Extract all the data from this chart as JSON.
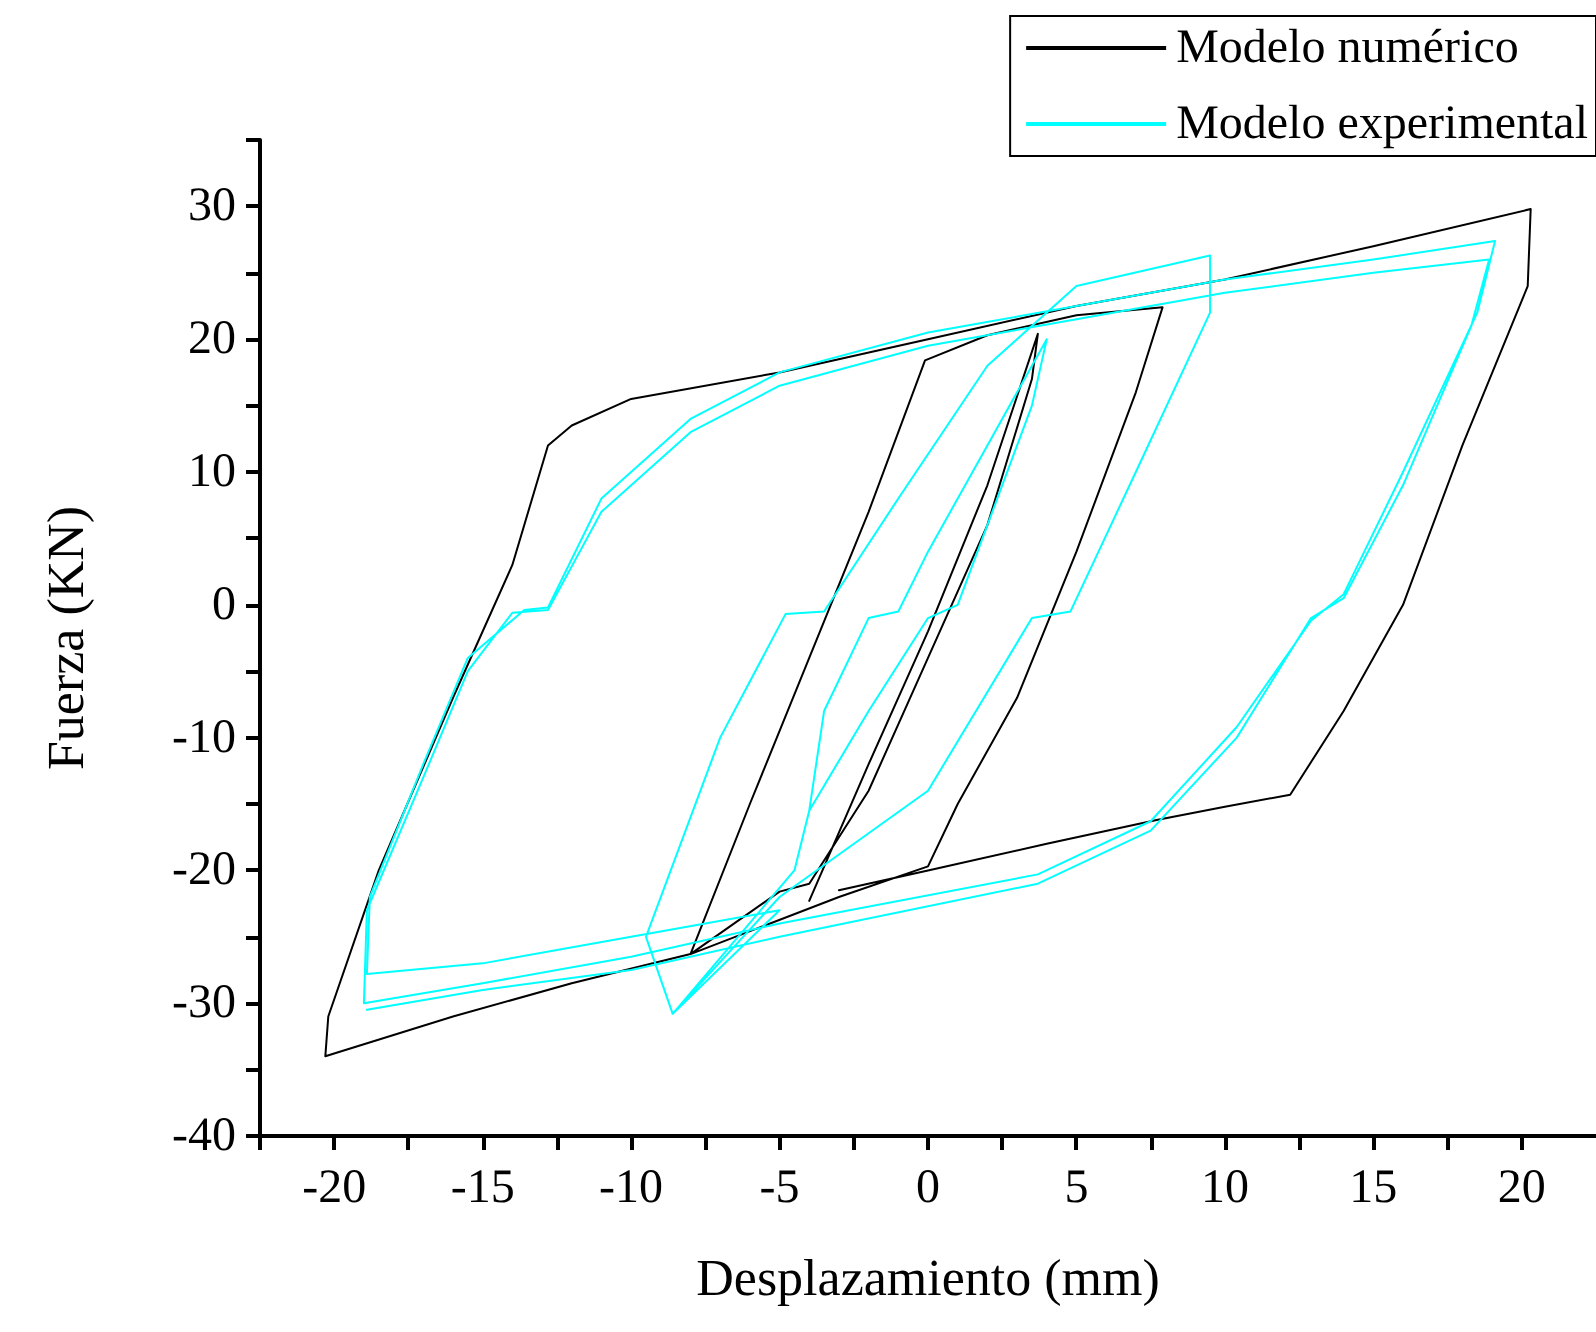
{
  "chart_data": {
    "type": "line",
    "xlabel": "Desplazamiento (mm)",
    "ylabel": "Fuerza (KN)",
    "xlim": [
      -22.5,
      22.5
    ],
    "ylim": [
      -40,
      35
    ],
    "xticks": [
      {
        "value": -22.5,
        "label": null
      },
      -20,
      {
        "value": -17.5,
        "label": null
      },
      -15,
      {
        "value": -12.5,
        "label": null
      },
      -10,
      {
        "value": -7.5,
        "label": null
      },
      -5,
      {
        "value": -2.5,
        "label": null
      },
      0,
      {
        "value": 2.5,
        "label": null
      },
      5,
      {
        "value": 7.5,
        "label": null
      },
      10,
      {
        "value": 12.5,
        "label": null
      },
      15,
      {
        "value": 17.5,
        "label": null
      },
      20
    ],
    "yticks": [
      -40,
      {
        "value": -35,
        "label": null
      },
      -30,
      {
        "value": -25,
        "label": null
      },
      -20,
      {
        "value": -15,
        "label": null
      },
      -10,
      {
        "value": -5,
        "label": null
      },
      0,
      {
        "value": 5,
        "label": null
      },
      10,
      {
        "value": 15,
        "label": null
      },
      20,
      {
        "value": 25,
        "label": null
      },
      30,
      {
        "value": 35,
        "label": null
      }
    ],
    "grid": false,
    "legend": "top right",
    "series": [
      {
        "name": "Modelo numérico",
        "color": "#000000",
        "x": [
          -4,
          -2,
          0,
          2,
          3.7,
          3.5,
          2,
          0,
          -2,
          -4,
          -5,
          -8,
          -6,
          -4,
          -2,
          -0.1,
          2,
          5,
          7.9,
          7,
          5,
          3,
          1,
          0,
          -3,
          -8,
          -12,
          -16,
          -20.3,
          -20.2,
          -18.5,
          -16,
          -14,
          -12.8,
          -12,
          -10,
          -5,
          0,
          5,
          10,
          15,
          20.3,
          20.2,
          18,
          16,
          14,
          12.2,
          10,
          7.7,
          4,
          0,
          -3
        ],
        "values": [
          -22.3,
          -12,
          -2,
          9,
          20.4,
          17,
          6,
          -4,
          -14,
          -21,
          -21.6,
          -26.3,
          -15,
          -4,
          7,
          18.4,
          20.3,
          21.8,
          22.4,
          16,
          4,
          -7,
          -15,
          -19.7,
          -22,
          -26.3,
          -28.5,
          -31,
          -34,
          -31,
          -20,
          -7,
          3,
          12,
          13.5,
          15.5,
          17.5,
          20,
          22.5,
          24.5,
          27,
          29.8,
          24,
          12,
          0,
          -8,
          -14.3,
          -15.2,
          -16.2,
          -18,
          -20,
          -21.5
        ]
      },
      {
        "name": "Modelo experimental",
        "color": "#00ffff",
        "x": [
          -4,
          -3.5,
          -2,
          -1,
          0,
          2,
          4,
          3.5,
          2,
          1,
          0,
          -2,
          -4,
          -4.5,
          -8.6,
          -9.5,
          -7,
          -4.8,
          -3.5,
          -1,
          2,
          5,
          9.5,
          9.5,
          7,
          4.8,
          3.5,
          0,
          -5,
          -8.6,
          -5,
          -10,
          -15,
          -18.9,
          -18.8,
          -17,
          -15.5,
          -13.6,
          -12.8,
          -11,
          -8,
          -5,
          0,
          5,
          10,
          15,
          19.1,
          18.5,
          16,
          14,
          12.9,
          10.4,
          7.5,
          3.7,
          -5,
          -10,
          -15,
          -19,
          -18.9,
          -17,
          -15.5,
          -14,
          -12.8,
          -11,
          -8,
          -5,
          0,
          5,
          10,
          15,
          18.9,
          18.3,
          16,
          14,
          12.9,
          10.4,
          7.5,
          3.7,
          -5,
          -10,
          -15,
          -18.9
        ],
        "values": [
          -15.5,
          -8,
          -1,
          -0.5,
          4,
          12,
          20,
          15,
          6,
          0,
          -1,
          -8,
          -15.5,
          -20,
          -30.8,
          -25,
          -10,
          -0.7,
          -0.5,
          8,
          18,
          24,
          26.3,
          22,
          10,
          -0.5,
          -1,
          -14,
          -22,
          -30.8,
          -23,
          -25,
          -27,
          -27.8,
          -22,
          -12,
          -4,
          -0.4,
          -0.2,
          8,
          14,
          17.5,
          20.5,
          22.5,
          24.5,
          26,
          27.4,
          22,
          10,
          0.8,
          -1.2,
          -9.2,
          -16.3,
          -20.3,
          -24,
          -26.5,
          -28.5,
          -30,
          -23,
          -13,
          -5,
          -0.6,
          -0.4,
          7,
          13,
          16.5,
          19.5,
          21.5,
          23.5,
          25,
          26,
          21,
          9,
          0.5,
          -1,
          -10,
          -17,
          -21,
          -25,
          -27.5,
          -29,
          -30.5
        ]
      }
    ]
  }
}
